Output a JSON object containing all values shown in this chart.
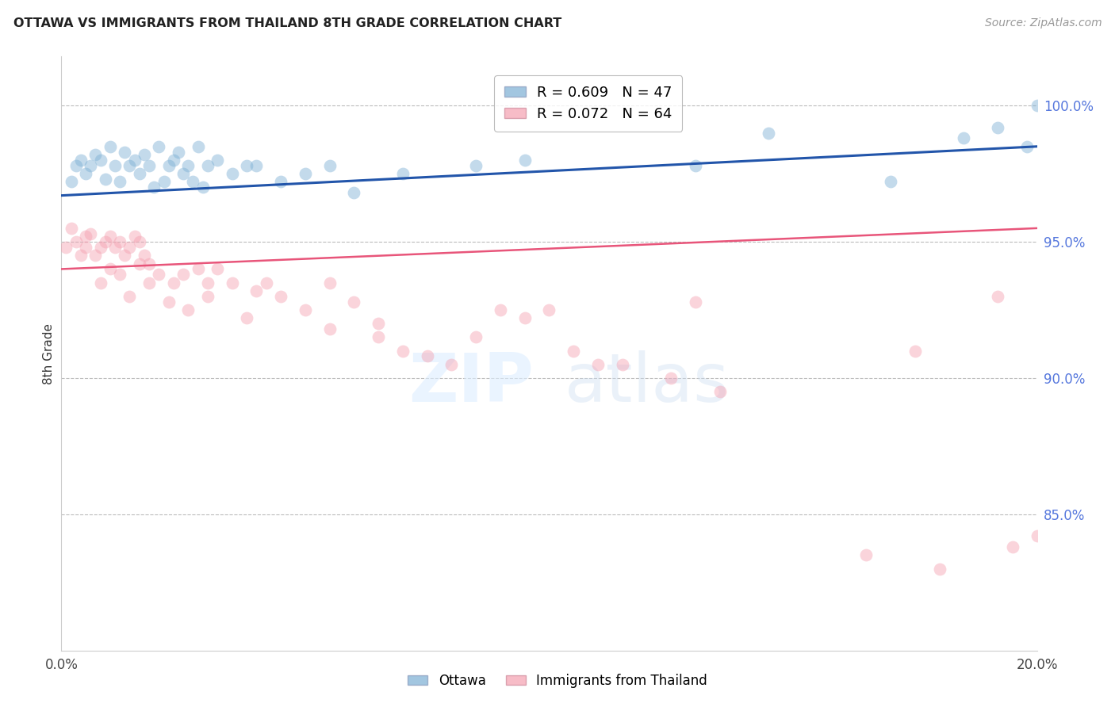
{
  "title": "OTTAWA VS IMMIGRANTS FROM THAILAND 8TH GRADE CORRELATION CHART",
  "source": "Source: ZipAtlas.com",
  "ylabel": "8th Grade",
  "ymin": 80.0,
  "ymax": 101.8,
  "xmin": 0.0,
  "xmax": 20.0,
  "blue_R": 0.609,
  "blue_N": 47,
  "pink_R": 0.072,
  "pink_N": 64,
  "blue_color": "#7BAFD4",
  "pink_color": "#F4A0B0",
  "blue_line_color": "#2255AA",
  "pink_line_color": "#E8557A",
  "yticks": [
    85.0,
    90.0,
    95.0,
    100.0
  ],
  "blue_line_x0": 0.0,
  "blue_line_y0": 96.7,
  "blue_line_x1": 20.0,
  "blue_line_y1": 98.5,
  "pink_line_x0": 0.0,
  "pink_line_y0": 94.0,
  "pink_line_x1": 20.0,
  "pink_line_y1": 95.5,
  "blue_scatter_x": [
    0.2,
    0.3,
    0.4,
    0.5,
    0.6,
    0.7,
    0.8,
    0.9,
    1.0,
    1.1,
    1.2,
    1.3,
    1.4,
    1.5,
    1.6,
    1.7,
    1.8,
    1.9,
    2.0,
    2.1,
    2.2,
    2.3,
    2.4,
    2.5,
    2.6,
    2.7,
    2.8,
    2.9,
    3.0,
    3.2,
    3.5,
    3.8,
    4.0,
    4.5,
    5.0,
    5.5,
    6.0,
    7.0,
    8.5,
    9.5,
    13.0,
    14.5,
    17.0,
    18.5,
    19.2,
    19.8,
    20.0
  ],
  "blue_scatter_y": [
    97.2,
    97.8,
    98.0,
    97.5,
    97.8,
    98.2,
    98.0,
    97.3,
    98.5,
    97.8,
    97.2,
    98.3,
    97.8,
    98.0,
    97.5,
    98.2,
    97.8,
    97.0,
    98.5,
    97.2,
    97.8,
    98.0,
    98.3,
    97.5,
    97.8,
    97.2,
    98.5,
    97.0,
    97.8,
    98.0,
    97.5,
    97.8,
    97.8,
    97.2,
    97.5,
    97.8,
    96.8,
    97.5,
    97.8,
    98.0,
    97.8,
    99.0,
    97.2,
    98.8,
    99.2,
    98.5,
    100.0
  ],
  "pink_scatter_x": [
    0.1,
    0.2,
    0.3,
    0.4,
    0.5,
    0.5,
    0.6,
    0.7,
    0.8,
    0.9,
    1.0,
    1.1,
    1.2,
    1.3,
    1.4,
    1.5,
    1.6,
    1.7,
    1.8,
    2.0,
    2.3,
    2.5,
    2.8,
    3.0,
    3.2,
    3.5,
    4.0,
    4.5,
    5.0,
    5.5,
    6.0,
    6.5,
    7.0,
    7.5,
    8.0,
    8.5,
    9.5,
    10.5,
    11.5,
    12.5,
    13.5,
    5.5,
    10.0,
    17.5,
    19.2,
    0.8,
    1.0,
    1.2,
    1.4,
    1.6,
    1.8,
    2.2,
    2.6,
    3.0,
    3.8,
    4.2,
    6.5,
    9.0,
    11.0,
    13.0,
    16.5,
    18.0,
    19.5,
    20.0
  ],
  "pink_scatter_y": [
    94.8,
    95.5,
    95.0,
    94.5,
    95.2,
    94.8,
    95.3,
    94.5,
    94.8,
    95.0,
    95.2,
    94.8,
    95.0,
    94.5,
    94.8,
    95.2,
    95.0,
    94.5,
    94.2,
    93.8,
    93.5,
    93.8,
    94.0,
    93.5,
    94.0,
    93.5,
    93.2,
    93.0,
    92.5,
    91.8,
    92.8,
    91.5,
    91.0,
    90.8,
    90.5,
    91.5,
    92.2,
    91.0,
    90.5,
    90.0,
    89.5,
    93.5,
    92.5,
    91.0,
    93.0,
    93.5,
    94.0,
    93.8,
    93.0,
    94.2,
    93.5,
    92.8,
    92.5,
    93.0,
    92.2,
    93.5,
    92.0,
    92.5,
    90.5,
    92.8,
    83.5,
    83.0,
    83.8,
    84.2
  ]
}
